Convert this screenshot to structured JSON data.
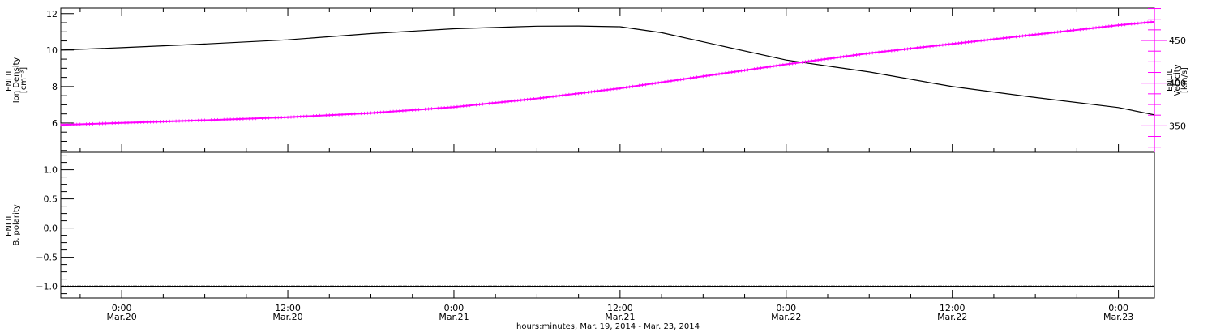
{
  "chart_data": {
    "type": "line",
    "x_axis": {
      "title": "hours:minutes, Mar. 19, 2014 - Mar. 23, 2014",
      "range_hours_since_mar19": [
        19.6,
        98.6
      ],
      "tick_hours": [
        24,
        36,
        48,
        60,
        72,
        84,
        96
      ],
      "tick_time_labels": [
        "0:00",
        "12:00",
        "0:00",
        "12:00",
        "0:00",
        "12:00",
        "0:00"
      ],
      "tick_date_labels": [
        "Mar.20",
        "Mar.20",
        "Mar.21",
        "Mar.21",
        "Mar.22",
        "Mar.22",
        "Mar.23"
      ]
    },
    "panels": [
      {
        "left_axis": {
          "label_lines": [
            "ENLIL",
            "Ion Density",
            "[cm⁻³]"
          ],
          "ylim": [
            4.4,
            12.3
          ],
          "ticks": [
            6,
            8,
            10,
            12
          ],
          "tick_labels": [
            "6",
            "8",
            "10",
            "12"
          ]
        },
        "right_axis": {
          "label_lines": [
            "ENLIL",
            "Velocity",
            "[km/s]"
          ],
          "ylim": [
            319,
            488
          ],
          "ticks": [
            350,
            400,
            450
          ],
          "tick_labels": [
            "350",
            "400",
            "450"
          ],
          "color": "#ff00ff"
        },
        "series": [
          {
            "axis": "left",
            "color": "#000000",
            "x": [
              19.6,
              24,
              30,
              36,
              42,
              48,
              54,
              57,
              60,
              63,
              66,
              72,
              78,
              84,
              90,
              96,
              98.6
            ],
            "y": [
              10.0,
              10.13,
              10.33,
              10.56,
              10.9,
              11.17,
              11.31,
              11.32,
              11.28,
              10.95,
              10.45,
              9.45,
              8.8,
              8.0,
              7.4,
              6.85,
              6.45
            ]
          },
          {
            "axis": "right",
            "color": "#ff00ff",
            "x": [
              19.6,
              24,
              30,
              36,
              42,
              48,
              54,
              60,
              66,
              72,
              78,
              84,
              90,
              96,
              98.6
            ],
            "y": [
              351,
              353.5,
              356.5,
              360,
              365,
              372,
              382,
              394,
              408,
              422,
              435,
              446,
              457,
              468,
              472
            ]
          }
        ]
      },
      {
        "left_axis": {
          "label_lines": [
            "ENLIL",
            "B, polarity"
          ],
          "ylim": [
            -1.2,
            1.3
          ],
          "ticks": [
            -1.0,
            -0.5,
            0.0,
            0.5,
            1.0
          ],
          "tick_labels": [
            "−1.0",
            "−0.5",
            "0.0",
            "0.5",
            "1.0"
          ]
        },
        "series": [
          {
            "axis": "left",
            "color": "#000000",
            "x": [
              19.6,
              98.6
            ],
            "y": [
              -1.0,
              -1.0
            ]
          }
        ]
      }
    ]
  }
}
